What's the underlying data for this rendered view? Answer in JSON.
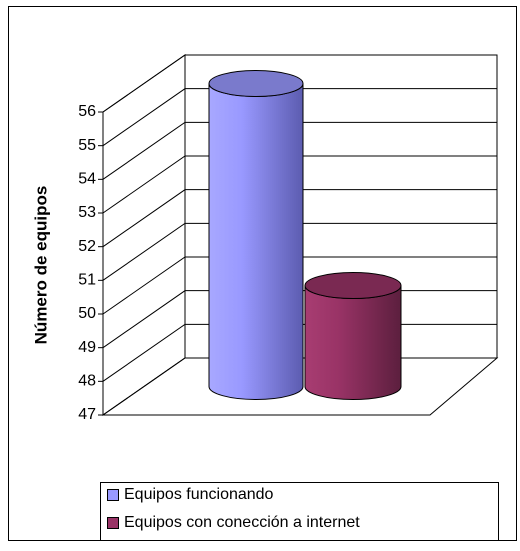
{
  "chart_data": {
    "type": "bar",
    "y_label": "Número de equipos",
    "categories": [
      null
    ],
    "series": [
      {
        "name": "Equipos funcionando",
        "color": "#9999ff",
        "values": [
          56
        ]
      },
      {
        "name": "Equipos con conección a internet",
        "color": "#993366",
        "values": [
          50
        ]
      }
    ],
    "ylim": [
      47,
      56
    ],
    "yticks": [
      47,
      48,
      49,
      50,
      51,
      52,
      53,
      54,
      55,
      56
    ],
    "grid": true,
    "legend": "bottom"
  }
}
